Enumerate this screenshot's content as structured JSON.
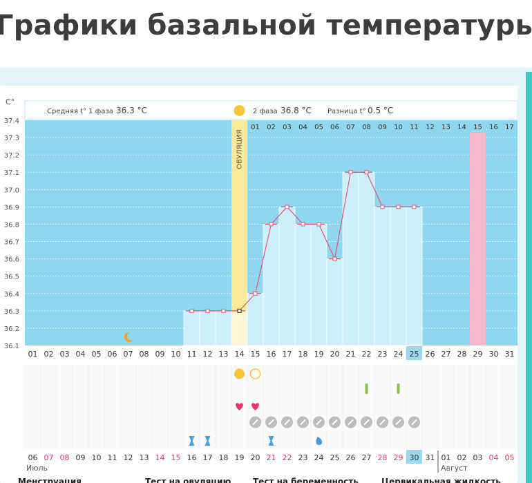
{
  "page_title": "Графики базальной температуры",
  "colors": {
    "plot_bg": "#8fd6f1",
    "bar_fill": "#cdeefb",
    "ovulation": "#fbe99a",
    "highlight": "#f5b7cb",
    "line": "#e05576",
    "heart": "#e8357a",
    "moon": "#f0a030",
    "sun": "#f6c538",
    "hourglass": "#4a9fd8",
    "green": "#8bc34a",
    "selected": "#9fd8ee"
  },
  "header": {
    "unit": "C°",
    "phase1_label": "Средняя t° 1 фаза",
    "phase1_value": "36.3 °C",
    "phase2_label": "2 фаза",
    "phase2_value": "36.8 °C",
    "diff_label": "Разница t°",
    "diff_value": "0.5 °C",
    "ovulation_label": "ОВУЛЯЦИЯ"
  },
  "chart_data": {
    "type": "line",
    "y_ticks": [
      "37.4",
      "37.3",
      "37.2",
      "37.1",
      "37.0",
      "36.9",
      "36.8",
      "36.7",
      "36.6",
      "36.5",
      "36.4",
      "36.3",
      "36.2",
      "36.1"
    ],
    "ylim": [
      36.1,
      37.4
    ],
    "cycle_days": [
      "01",
      "02",
      "03",
      "04",
      "05",
      "06",
      "07",
      "08",
      "09",
      "10",
      "11",
      "12",
      "13",
      "14",
      "15",
      "16",
      "17",
      "18",
      "19",
      "20",
      "21",
      "22",
      "23",
      "24",
      "25",
      "26",
      "27",
      "28",
      "29",
      "30",
      "31"
    ],
    "phase2_days": [
      "01",
      "02",
      "03",
      "04",
      "05",
      "06",
      "07",
      "08",
      "09",
      "10",
      "11",
      "12",
      "13",
      "14",
      "15",
      "16",
      "17"
    ],
    "ovulation_day": 14,
    "selected_day": 25,
    "highlight_day": 29,
    "series": [
      {
        "x": [
          11,
          12,
          13,
          14,
          15,
          16,
          17,
          18,
          19,
          20,
          21,
          22,
          23,
          24,
          25
        ],
        "y": [
          36.3,
          36.3,
          36.3,
          36.3,
          36.4,
          36.8,
          36.9,
          36.8,
          36.8,
          36.6,
          37.1,
          37.1,
          36.9,
          36.9,
          36.9
        ]
      }
    ],
    "dates_bottom": [
      "06",
      "07",
      "08",
      "09",
      "10",
      "11",
      "12",
      "13",
      "14",
      "15",
      "16",
      "17",
      "18",
      "19",
      "20",
      "21",
      "22",
      "23",
      "24",
      "25",
      "26",
      "27",
      "28",
      "29",
      "30",
      "31",
      "01",
      "02",
      "03",
      "04",
      "05"
    ],
    "red_dates": [
      "07",
      "08",
      "14",
      "15",
      "21",
      "22",
      "28",
      "29",
      "04",
      "05"
    ],
    "month1": "Июль",
    "month2": "Август",
    "selected_bottom": "30"
  },
  "markers": {
    "moon_day": 7,
    "sun_filled_day": 14,
    "sun_outline_day": 15,
    "heart_days": [
      14,
      15
    ],
    "check_days": [
      15,
      16,
      17,
      18,
      19,
      20,
      21,
      22,
      23,
      24,
      25
    ],
    "green_days": [
      22,
      24
    ],
    "hourglass_days": [
      11,
      12,
      16
    ],
    "drop_day": 19
  },
  "legend_cut": [
    "Менструация",
    "Тест на овуляцию",
    "Тест на беременность",
    "Цервикальная жидкость"
  ]
}
